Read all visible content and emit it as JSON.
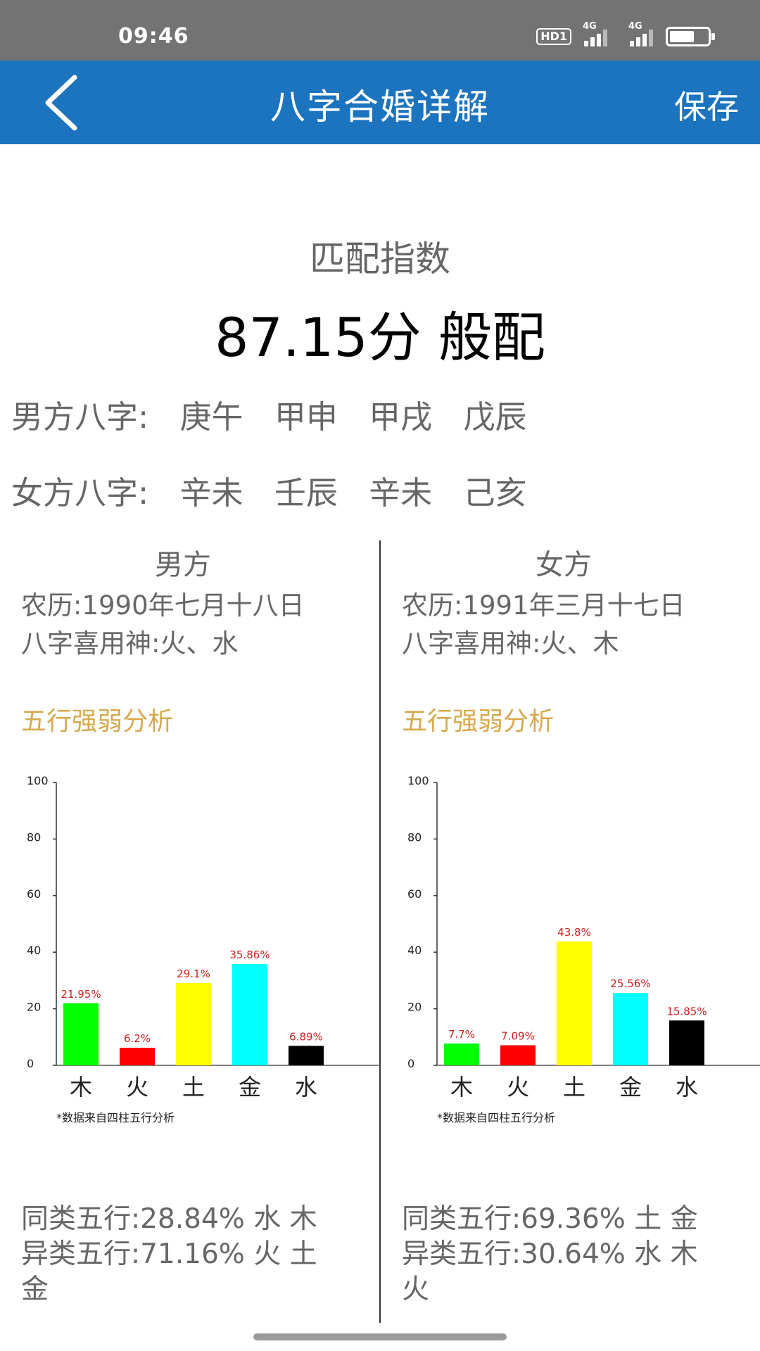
{
  "status_bar": {
    "time": "09:46",
    "hd_label": "HD1",
    "net1": "4G",
    "net2": "4G",
    "battery_level": 0.65
  },
  "app_bar": {
    "title": "八字合婚详解",
    "save_label": "保存",
    "back_icon": "chevron-left-icon"
  },
  "match": {
    "label": "匹配指数",
    "value": "87.15分 般配"
  },
  "bazi": {
    "male": {
      "label": "男方八字:",
      "pillars": [
        "庚午",
        "甲申",
        "甲戌",
        "戊辰"
      ]
    },
    "female": {
      "label": "女方八字:",
      "pillars": [
        "辛未",
        "壬辰",
        "辛未",
        "己亥"
      ]
    }
  },
  "male": {
    "heading": "男方",
    "lunar": "农历:1990年七月十八日",
    "xiyong": "八字喜用神:火、水",
    "section_title": "五行强弱分析",
    "footnote": "*数据来自四柱五行分析",
    "same": "同类五行:28.84%  水 木",
    "diff_line1": "异类五行:71.16%  火 土",
    "diff_line2": "金"
  },
  "female": {
    "heading": "女方",
    "lunar": "农历:1991年三月十七日",
    "xiyong": "八字喜用神:火、木",
    "section_title": "五行强弱分析",
    "footnote": "*数据来自四柱五行分析",
    "same": "同类五行:69.36%  土 金",
    "diff_line1": "异类五行:30.64%  水 木",
    "diff_line2": "火"
  },
  "chart_data": [
    {
      "type": "bar",
      "categories": [
        "木",
        "火",
        "土",
        "金",
        "水"
      ],
      "values": [
        21.95,
        6.2,
        29.1,
        35.86,
        6.89
      ],
      "data_labels": [
        "21.95%",
        "6.2%",
        "29.1%",
        "35.86%",
        "6.89%"
      ],
      "colors": [
        "#00ff00",
        "#ff0000",
        "#ffff00",
        "#00ffff",
        "#000000"
      ],
      "yticks": [
        0,
        20,
        40,
        60,
        80,
        100
      ],
      "ylim": [
        0,
        100
      ],
      "label_color": "#cc1f1f"
    },
    {
      "type": "bar",
      "categories": [
        "木",
        "火",
        "土",
        "金",
        "水"
      ],
      "values": [
        7.7,
        7.09,
        43.8,
        25.56,
        15.85
      ],
      "data_labels": [
        "7.7%",
        "7.09%",
        "43.8%",
        "25.56%",
        "15.85%"
      ],
      "colors": [
        "#00ff00",
        "#ff0000",
        "#ffff00",
        "#00ffff",
        "#000000"
      ],
      "yticks": [
        0,
        20,
        40,
        60,
        80,
        100
      ],
      "ylim": [
        0,
        100
      ],
      "label_color": "#cc1f1f"
    }
  ]
}
